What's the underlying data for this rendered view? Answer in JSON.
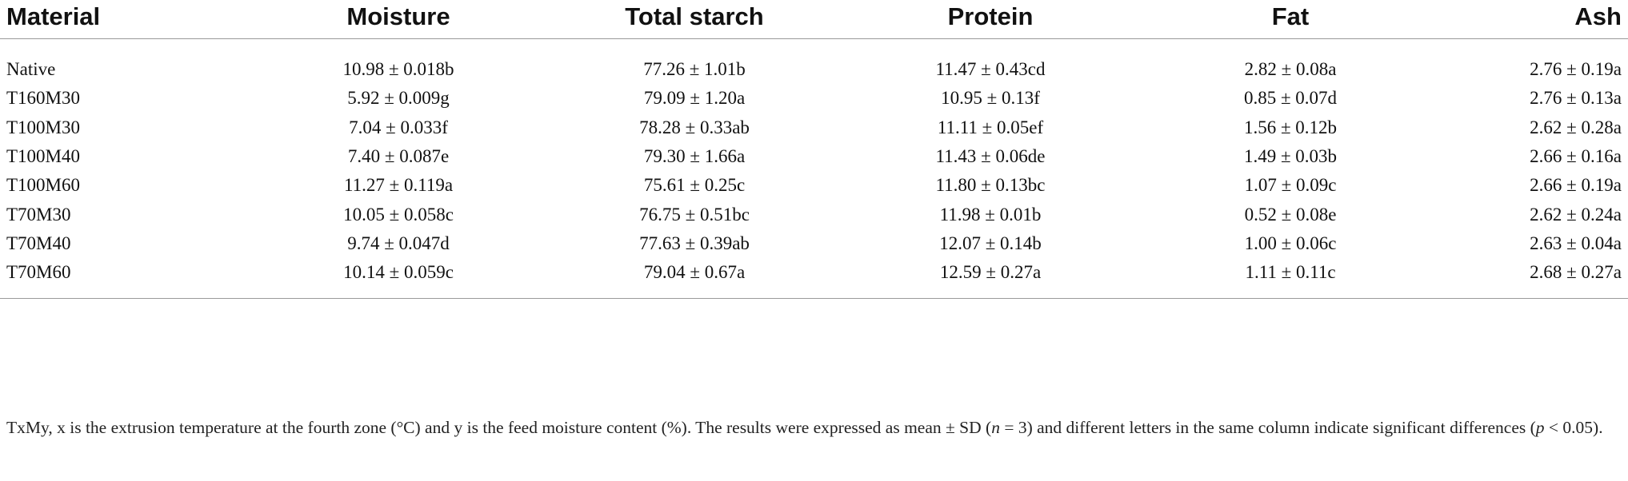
{
  "headers": [
    "Material",
    "Moisture",
    "Total starch",
    "Protein",
    "Fat",
    "Ash"
  ],
  "rows": [
    [
      "Native",
      "10.98 ± 0.018b",
      "77.26 ± 1.01b",
      "11.47 ± 0.43cd",
      "2.82 ± 0.08a",
      "2.76 ± 0.19a"
    ],
    [
      "T160M30",
      "5.92 ± 0.009g",
      "79.09 ± 1.20a",
      "10.95 ± 0.13f",
      "0.85 ± 0.07d",
      "2.76 ± 0.13a"
    ],
    [
      "T100M30",
      "7.04 ± 0.033f",
      "78.28 ± 0.33ab",
      "11.11 ± 0.05ef",
      "1.56 ± 0.12b",
      "2.62 ± 0.28a"
    ],
    [
      "T100M40",
      "7.40 ± 0.087e",
      "79.30 ± 1.66a",
      "11.43 ± 0.06de",
      "1.49 ± 0.03b",
      "2.66 ± 0.16a"
    ],
    [
      "T100M60",
      "11.27 ± 0.119a",
      "75.61 ± 0.25c",
      "11.80 ± 0.13bc",
      "1.07 ± 0.09c",
      "2.66 ± 0.19a"
    ],
    [
      "T70M30",
      "10.05 ± 0.058c",
      "76.75 ± 0.51bc",
      "11.98 ± 0.01b",
      "0.52 ± 0.08e",
      "2.62 ± 0.24a"
    ],
    [
      "T70M40",
      "9.74 ± 0.047d",
      "77.63 ± 0.39ab",
      "12.07 ± 0.14b",
      "1.00 ± 0.06c",
      "2.63 ± 0.04a"
    ],
    [
      "T70M60",
      "10.14 ± 0.059c",
      "79.04 ± 0.67a",
      "12.59 ± 0.27a",
      "1.11 ± 0.11c",
      "2.68 ± 0.27a"
    ]
  ],
  "footnote": {
    "part1": "TxMy, x is the extrusion temperature at the fourth zone (°C) and y is the feed moisture content (%). The results were expressed as mean ± SD (",
    "n_symbol": "n",
    "part2": " = 3) and different letters in the same column indicate significant differences (",
    "p_symbol": "p",
    "part3": " < 0.05)."
  }
}
